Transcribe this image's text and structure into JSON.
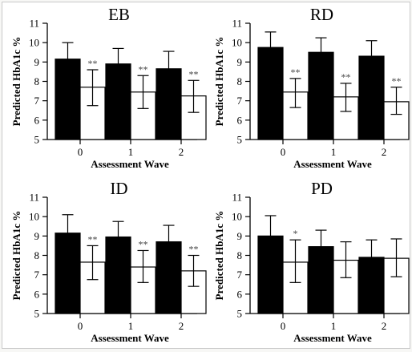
{
  "chart_data": [
    {
      "type": "bar",
      "title": "EB",
      "xlabel": "Assessment Wave",
      "ylabel": "Predicted HbA1c %",
      "ylim": [
        5,
        11
      ],
      "yticks": [
        "5",
        "6",
        "7",
        "8",
        "9",
        "10",
        "11"
      ],
      "categories": [
        "0",
        "1",
        "2"
      ],
      "series": [
        {
          "fill": "#000000",
          "values": [
            9.15,
            8.9,
            8.65
          ],
          "err_high": [
            10.0,
            9.7,
            9.55
          ]
        },
        {
          "fill": "#ffffff",
          "values": [
            7.7,
            7.45,
            7.25
          ],
          "err_high": [
            8.6,
            8.3,
            8.05
          ],
          "err_low": [
            6.75,
            6.6,
            6.4
          ],
          "sig": [
            "**",
            "**",
            "**"
          ]
        }
      ]
    },
    {
      "type": "bar",
      "title": "RD",
      "xlabel": "Assessment Wave",
      "ylabel": "Predicted HbA1c %",
      "ylim": [
        5,
        11
      ],
      "yticks": [
        "5",
        "6",
        "7",
        "8",
        "9",
        "10",
        "11"
      ],
      "categories": [
        "0",
        "1",
        "2"
      ],
      "series": [
        {
          "fill": "#000000",
          "values": [
            9.75,
            9.5,
            9.3
          ],
          "err_high": [
            10.55,
            10.25,
            10.1
          ]
        },
        {
          "fill": "#ffffff",
          "values": [
            7.45,
            7.2,
            6.95
          ],
          "err_high": [
            8.15,
            7.9,
            7.7
          ],
          "err_low": [
            6.65,
            6.45,
            6.3
          ],
          "sig": [
            "**",
            "**",
            "**"
          ]
        }
      ]
    },
    {
      "type": "bar",
      "title": "ID",
      "xlabel": "Assessment Wave",
      "ylabel": "Predicted HbA1c %",
      "ylim": [
        5,
        11
      ],
      "yticks": [
        "5",
        "6",
        "7",
        "8",
        "9",
        "10",
        "11"
      ],
      "categories": [
        "0",
        "1",
        "2"
      ],
      "series": [
        {
          "fill": "#000000",
          "values": [
            9.15,
            8.95,
            8.7
          ],
          "err_high": [
            10.1,
            9.75,
            9.55
          ]
        },
        {
          "fill": "#ffffff",
          "values": [
            7.65,
            7.4,
            7.2
          ],
          "err_high": [
            8.5,
            8.25,
            8.0
          ],
          "err_low": [
            6.75,
            6.6,
            6.4
          ],
          "sig": [
            "**",
            "**",
            "**"
          ]
        }
      ]
    },
    {
      "type": "bar",
      "title": "PD",
      "xlabel": "Assessment Wave",
      "ylabel": "Predicted HbA1c %",
      "ylim": [
        5,
        11
      ],
      "yticks": [
        "5",
        "6",
        "7",
        "8",
        "9",
        "10",
        "11"
      ],
      "categories": [
        "0",
        "1",
        "2"
      ],
      "series": [
        {
          "fill": "#000000",
          "values": [
            9.0,
            8.45,
            7.9
          ],
          "err_high": [
            10.05,
            9.3,
            8.8
          ]
        },
        {
          "fill": "#ffffff",
          "values": [
            7.65,
            7.75,
            7.85
          ],
          "err_high": [
            8.8,
            8.7,
            8.85
          ],
          "err_low": [
            6.6,
            6.85,
            6.9
          ],
          "sig": [
            "*",
            "",
            ""
          ]
        }
      ]
    }
  ]
}
